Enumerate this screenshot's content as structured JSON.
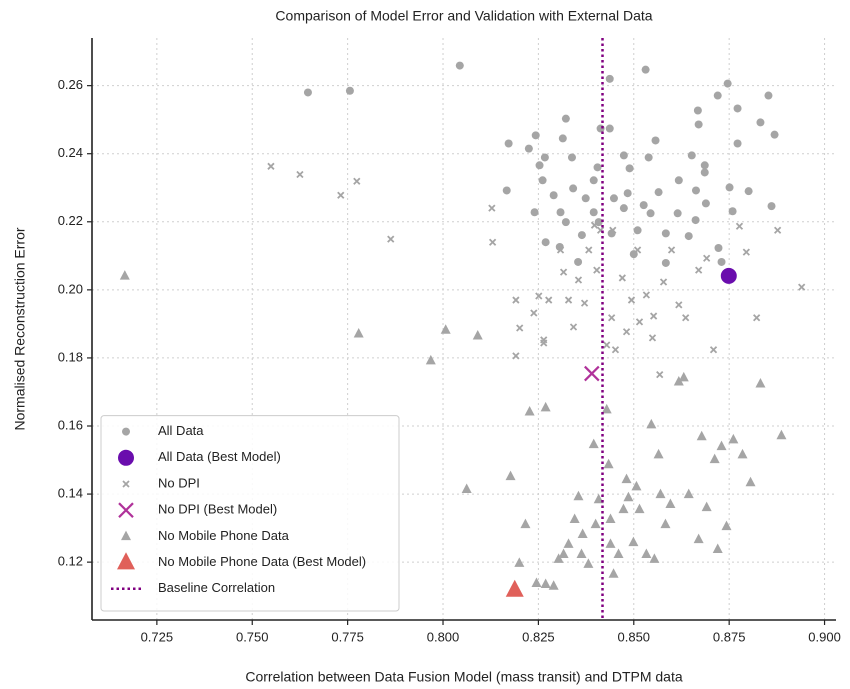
{
  "chart_data": {
    "type": "scatter",
    "title": "Comparison of Model Error and Validation with External Data",
    "x_label": "Correlation between Data Fusion Model (mass transit) and DTPM data",
    "y_label": "Normalised Reconstruction Error",
    "xlim": [
      0.708,
      0.903
    ],
    "ylim": [
      0.103,
      0.274
    ],
    "xticks": [
      0.725,
      {
        "value": 0.75,
        "label": "0.750"
      },
      0.775,
      {
        "value": 0.8,
        "label": "0.800"
      },
      0.825,
      {
        "value": 0.85,
        "label": "0.850"
      },
      0.875,
      {
        "value": 0.9,
        "label": "0.900"
      }
    ],
    "yticks": [
      0.12,
      0.14,
      0.16,
      0.18,
      {
        "value": 0.2,
        "label": "0.20"
      },
      0.22,
      0.24,
      0.26
    ],
    "grid": true,
    "legend": "lower left",
    "series": [
      {
        "name": "All Data",
        "color": "#a5a5a5",
        "marker": "circle",
        "marker_size": 4,
        "x": [
          0.8044,
          0.7646,
          0.7756,
          0.8437,
          0.8531,
          0.8746,
          0.872,
          0.8853,
          0.8668,
          0.8772,
          0.8832,
          0.8869,
          0.8322,
          0.8243,
          0.8172,
          0.8225,
          0.8314,
          0.8413,
          0.8437,
          0.8557,
          0.867,
          0.8772,
          0.8267,
          0.8338,
          0.8474,
          0.8539,
          0.8652,
          0.8253,
          0.8405,
          0.8489,
          0.8686,
          0.8618,
          0.8686,
          0.8261,
          0.8341,
          0.8167,
          0.829,
          0.8395,
          0.8484,
          0.8565,
          0.8663,
          0.8751,
          0.8801,
          0.8374,
          0.8448,
          0.8526,
          0.824,
          0.8308,
          0.8395,
          0.8474,
          0.8544,
          0.8615,
          0.8689,
          0.8759,
          0.8861,
          0.8322,
          0.8408,
          0.851,
          0.8584,
          0.8662,
          0.8269,
          0.8364,
          0.8442,
          0.8644,
          0.8722,
          0.8306,
          0.85,
          0.8584,
          0.8354,
          0.873
        ],
        "values": [
          0.2659,
          0.258,
          0.2585,
          0.262,
          0.2647,
          0.2606,
          0.2571,
          0.2571,
          0.2527,
          0.2533,
          0.2492,
          0.2456,
          0.2503,
          0.2454,
          0.243,
          0.2415,
          0.2445,
          0.2474,
          0.2474,
          0.2439,
          0.2486,
          0.243,
          0.2389,
          0.2389,
          0.2395,
          0.2389,
          0.2395,
          0.2366,
          0.236,
          0.2357,
          0.2366,
          0.2322,
          0.2345,
          0.2322,
          0.2298,
          0.2292,
          0.2278,
          0.2322,
          0.2284,
          0.2287,
          0.2292,
          0.2301,
          0.229,
          0.2269,
          0.2269,
          0.2249,
          0.2228,
          0.2228,
          0.2228,
          0.224,
          0.2225,
          0.2225,
          0.2254,
          0.2231,
          0.2246,
          0.2199,
          0.2199,
          0.2175,
          0.2166,
          0.2205,
          0.214,
          0.2161,
          0.2166,
          0.2158,
          0.2123,
          0.2126,
          0.2105,
          0.2079,
          0.2082,
          0.2082
        ]
      },
      {
        "name": "All Data (Best Model)",
        "color": "#6a0dad",
        "marker": "circle",
        "marker_size": 8,
        "x": [
          0.8749
        ],
        "values": [
          0.2041
        ]
      },
      {
        "name": "No DPI",
        "color": "#a5a5a5",
        "marker": "x",
        "marker_size": 3,
        "x": [
          0.7549,
          0.7625,
          0.7732,
          0.7774,
          0.7863,
          0.8128,
          0.813,
          0.8191,
          0.8201,
          0.8191,
          0.8238,
          0.8264,
          0.8251,
          0.8277,
          0.8308,
          0.8316,
          0.8329,
          0.8342,
          0.8355,
          0.8371,
          0.8382,
          0.8397,
          0.8403,
          0.8413,
          0.8429,
          0.8442,
          0.8452,
          0.847,
          0.8481,
          0.8494,
          0.8515,
          0.8533,
          0.8549,
          0.8552,
          0.8568,
          0.8578,
          0.8599,
          0.8618,
          0.8636,
          0.867,
          0.8691,
          0.8709,
          0.8777,
          0.8795,
          0.8822,
          0.8877,
          0.894,
          0.8445,
          0.851,
          0.8264
        ],
        "values": [
          0.2363,
          0.2339,
          0.2278,
          0.2319,
          0.2149,
          0.224,
          0.214,
          0.197,
          0.1888,
          0.1806,
          0.1932,
          0.1853,
          0.1982,
          0.197,
          0.2117,
          0.2052,
          0.197,
          0.1891,
          0.2029,
          0.1961,
          0.2117,
          0.219,
          0.2058,
          0.2175,
          0.1838,
          0.1918,
          0.1824,
          0.2035,
          0.1877,
          0.197,
          0.1906,
          0.1985,
          0.1859,
          0.1923,
          0.1751,
          0.2023,
          0.2117,
          0.1956,
          0.1918,
          0.2058,
          0.2093,
          0.1824,
          0.2187,
          0.2111,
          0.1918,
          0.2175,
          0.2008,
          0.2175,
          0.2117,
          0.1844
        ]
      },
      {
        "name": "No DPI (Best Model)",
        "color": "#b0329a",
        "marker": "x",
        "marker_size": 7,
        "x": [
          0.839
        ],
        "values": [
          0.1754
        ]
      },
      {
        "name": "No Mobile Phone Data",
        "color": "#a5a5a5",
        "marker": "triangle",
        "marker_size": 5,
        "x": [
          0.7166,
          0.7779,
          0.7968,
          0.8007,
          0.8091,
          0.8062,
          0.8177,
          0.82,
          0.8216,
          0.8227,
          0.8269,
          0.8269,
          0.829,
          0.8303,
          0.8316,
          0.8329,
          0.8345,
          0.8355,
          0.8366,
          0.8381,
          0.8395,
          0.84,
          0.8408,
          0.8429,
          0.8434,
          0.8439,
          0.8439,
          0.8447,
          0.846,
          0.8473,
          0.8481,
          0.8486,
          0.8499,
          0.8507,
          0.8515,
          0.8533,
          0.8546,
          0.8554,
          0.8565,
          0.857,
          0.8583,
          0.8596,
          0.8618,
          0.8631,
          0.8644,
          0.867,
          0.8678,
          0.8691,
          0.8712,
          0.872,
          0.873,
          0.8743,
          0.8761,
          0.8785,
          0.8806,
          0.8832,
          0.8887,
          0.8245,
          0.8363
        ],
        "values": [
          0.2041,
          0.1871,
          0.1792,
          0.1882,
          0.1865,
          0.1414,
          0.1452,
          0.1197,
          0.1311,
          0.1642,
          0.1654,
          0.1135,
          0.113,
          0.1209,
          0.1223,
          0.1253,
          0.1326,
          0.1393,
          0.1282,
          0.1194,
          0.1546,
          0.1311,
          0.1384,
          0.1648,
          0.1487,
          0.1326,
          0.1253,
          0.1165,
          0.1223,
          0.1355,
          0.1443,
          0.139,
          0.1258,
          0.1422,
          0.1355,
          0.1223,
          0.1604,
          0.1209,
          0.1516,
          0.1399,
          0.1311,
          0.137,
          0.173,
          0.1742,
          0.1399,
          0.1267,
          0.1569,
          0.1361,
          0.1502,
          0.1238,
          0.154,
          0.1305,
          0.156,
          0.1516,
          0.1434,
          0.1724,
          0.1572,
          0.1138,
          0.1223
        ]
      },
      {
        "name": "No Mobile Phone Data (Best Model)",
        "color": "#e0605a",
        "marker": "triangle",
        "marker_size": 9,
        "x": [
          0.8188
        ],
        "values": [
          0.1118
        ]
      }
    ],
    "baseline": {
      "name": "Baseline Correlation",
      "x": 0.8418,
      "color": "#800080"
    }
  }
}
